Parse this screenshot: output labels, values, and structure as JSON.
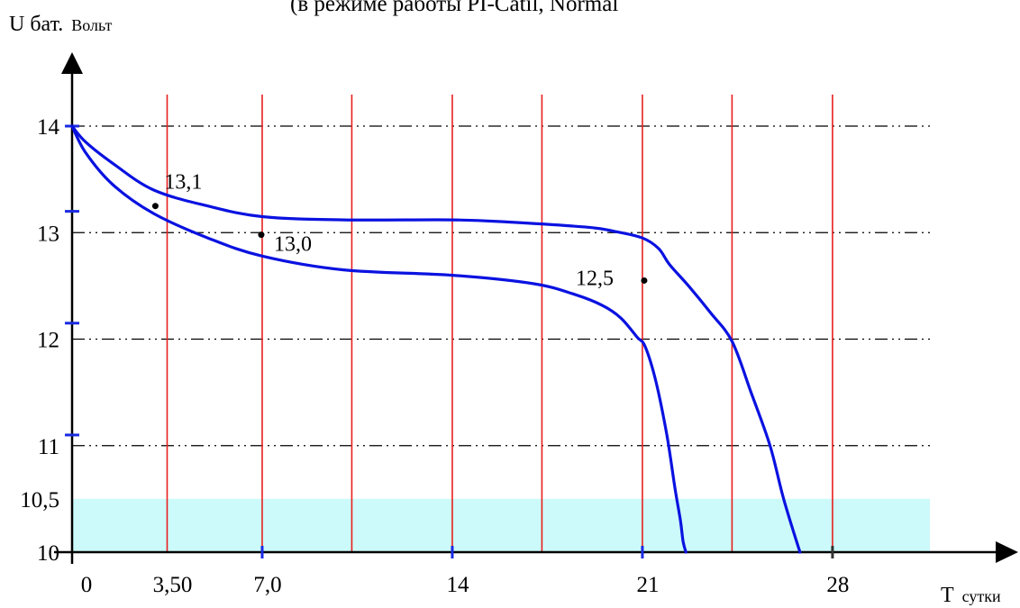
{
  "chart_data": {
    "type": "line",
    "title": "(в режиме работы  PI-Catil, Normal",
    "ylabel": {
      "main": "U бат.",
      "unit": "Вольт"
    },
    "xlabel": {
      "main": "T",
      "unit": "сутки"
    },
    "ylim": [
      10,
      14.5
    ],
    "xlim": [
      0,
      30.6
    ],
    "y_ticks": [
      {
        "value": 14,
        "label": "14"
      },
      {
        "value": 13,
        "label": "13"
      },
      {
        "value": 12,
        "label": "12"
      },
      {
        "value": 11,
        "label": "11"
      },
      {
        "value": 10.5,
        "label": "10,5"
      },
      {
        "value": 10,
        "label": "10"
      }
    ],
    "x_ticks": [
      {
        "value": 0,
        "label": "0"
      },
      {
        "value": 3.5,
        "label": "3,50"
      },
      {
        "value": 7,
        "label": "7,0"
      },
      {
        "value": 14,
        "label": "14"
      },
      {
        "value": 21,
        "label": "21"
      },
      {
        "value": 28,
        "label": "28"
      }
    ],
    "horizontal_gridlines": [
      14,
      13,
      12,
      11
    ],
    "vertical_gridlines": [
      3.5,
      7,
      10.3,
      14,
      17.3,
      21,
      24.3,
      28
    ],
    "shaded_region": {
      "ymin": 10,
      "ymax": 10.5,
      "color": "#ccfafa"
    },
    "series": [
      {
        "color": "#0a12e0",
        "x": [
          0,
          0.5,
          1.5,
          3,
          5,
          7,
          10,
          14,
          16,
          19,
          20,
          21,
          21.6,
          22,
          22.7,
          23.5,
          24.3,
          25,
          25.7,
          26.2,
          26.8
        ],
        "y": [
          14,
          13.85,
          13.65,
          13.4,
          13.25,
          13.15,
          13.12,
          13.12,
          13.1,
          13.05,
          13.01,
          12.95,
          12.85,
          12.7,
          12.5,
          12.25,
          11.98,
          11.5,
          11,
          10.5,
          10
        ]
      },
      {
        "color": "#0a12e0",
        "x": [
          0,
          0.5,
          1.5,
          3,
          5,
          7,
          10,
          14,
          17,
          18.5,
          19.5,
          20.2,
          20.8,
          21.1,
          21.5,
          21.9,
          22.2,
          22.4,
          22.5,
          22.6
        ],
        "y": [
          14,
          13.75,
          13.45,
          13.18,
          12.95,
          12.78,
          12.65,
          12.6,
          12.52,
          12.42,
          12.32,
          12.2,
          12.02,
          11.93,
          11.6,
          11.1,
          10.6,
          10.3,
          10.1,
          10
        ]
      }
    ],
    "annotations": [
      {
        "label": "13,1",
        "x": 3,
        "y": 13.25
      },
      {
        "label": "13,0",
        "x": 6.9,
        "y": 12.98
      },
      {
        "label": "12,5",
        "x": 21,
        "y": 12.55
      }
    ]
  }
}
